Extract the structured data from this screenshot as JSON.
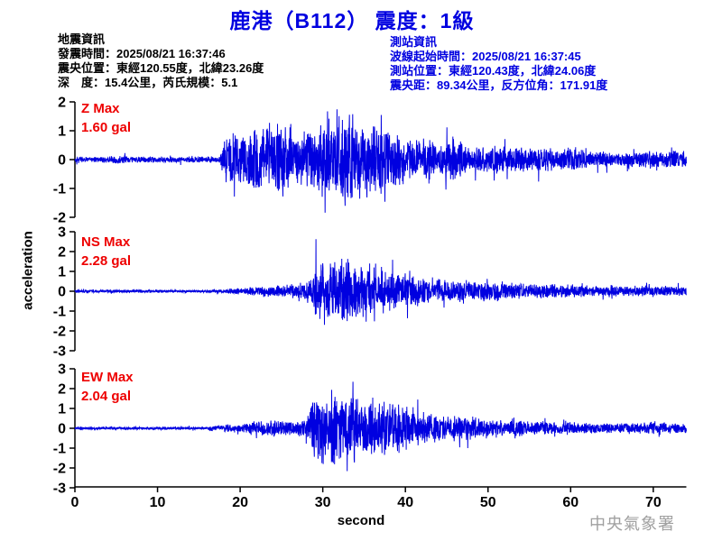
{
  "header": {
    "title": "鹿港（B112） 震度：1級"
  },
  "quake_info": {
    "heading": "地震資訊",
    "lines": [
      "發震時間：2025/08/21 16:37:46",
      "震央位置：東經120.55度，北緯23.26度",
      "深　度：15.4公里，芮氏規模：5.1"
    ]
  },
  "station_info": {
    "heading": "測站資訊",
    "lines": [
      "波線起始時間：2025/08/21 16:37:45",
      "測站位置：東經120.43度，北緯24.06度",
      "震央距：89.34公里，反方位角：171.91度"
    ]
  },
  "footer": {
    "agency": "中央氣象署"
  },
  "colors": {
    "title_blue": "#0000e0",
    "station_info_blue": "#0000e0",
    "label_red": "#ee0000",
    "waveform_blue": "#0000e0",
    "axis_black": "#000000",
    "footer_gray": "#a0a0a0"
  },
  "chart_data": {
    "type": "line",
    "subtype": "seismogram-3-channel-acceleration",
    "title": "鹿港（B112） 震度：1級",
    "xlabel": "second",
    "ylabel": "acceleration",
    "x_ticks": [
      0,
      10,
      20,
      30,
      40,
      50,
      60,
      70
    ],
    "x_range": [
      0,
      74
    ],
    "grid": false,
    "channels": [
      {
        "name": "Z",
        "label": "Z Max",
        "max_label": "1.60 gal",
        "max_gal": 1.6,
        "ylim": [
          -2,
          2
        ],
        "y_ticks": [
          2,
          1,
          0,
          -1,
          -2
        ],
        "envelope": [
          [
            0,
            0.06
          ],
          [
            4.5,
            0.08
          ],
          [
            5.5,
            0.11
          ],
          [
            6.5,
            0.07
          ],
          [
            12,
            0.07
          ],
          [
            17.6,
            0.07
          ],
          [
            18,
            0.5
          ],
          [
            19,
            0.6
          ],
          [
            20,
            0.55
          ],
          [
            21,
            0.65
          ],
          [
            22,
            0.8
          ],
          [
            23,
            0.7
          ],
          [
            24,
            0.75
          ],
          [
            25,
            0.85
          ],
          [
            26,
            0.75
          ],
          [
            27,
            0.6
          ],
          [
            28,
            0.65
          ],
          [
            29,
            0.7
          ],
          [
            30,
            0.95
          ],
          [
            31,
            0.9
          ],
          [
            32,
            1.05
          ],
          [
            33,
            1.1
          ],
          [
            34,
            1.0
          ],
          [
            35,
            0.95
          ],
          [
            36,
            0.8
          ],
          [
            37,
            0.85
          ],
          [
            38,
            0.7
          ],
          [
            39,
            0.65
          ],
          [
            40,
            0.5
          ],
          [
            41,
            0.55
          ],
          [
            42,
            0.4
          ],
          [
            43,
            0.5
          ],
          [
            44,
            0.35
          ],
          [
            45,
            0.4
          ],
          [
            46,
            0.55
          ],
          [
            47,
            0.35
          ],
          [
            48,
            0.28
          ],
          [
            49,
            0.33
          ],
          [
            50,
            0.3
          ],
          [
            51,
            0.34
          ],
          [
            52,
            0.3
          ],
          [
            53,
            0.24
          ],
          [
            54,
            0.3
          ],
          [
            55,
            0.26
          ],
          [
            56,
            0.28
          ],
          [
            57,
            0.32
          ],
          [
            58,
            0.24
          ],
          [
            59,
            0.27
          ],
          [
            60,
            0.26
          ],
          [
            61,
            0.24
          ],
          [
            62,
            0.21
          ],
          [
            63,
            0.16
          ],
          [
            64,
            0.2
          ],
          [
            65,
            0.15
          ],
          [
            66,
            0.13
          ],
          [
            67,
            0.22
          ],
          [
            68,
            0.16
          ],
          [
            69,
            0.19
          ],
          [
            70,
            0.24
          ],
          [
            71,
            0.19
          ],
          [
            72,
            0.22
          ],
          [
            73,
            0.19
          ],
          [
            74,
            0.18
          ]
        ]
      },
      {
        "name": "NS",
        "label": "NS Max",
        "max_label": "2.28 gal",
        "max_gal": 2.28,
        "ylim": [
          -3,
          3
        ],
        "y_ticks": [
          3,
          2,
          1,
          0,
          -1,
          -2,
          -3
        ],
        "envelope": [
          [
            0,
            0.06
          ],
          [
            8,
            0.07
          ],
          [
            16,
            0.06
          ],
          [
            17,
            0.1
          ],
          [
            18,
            0.09
          ],
          [
            19,
            0.13
          ],
          [
            20,
            0.18
          ],
          [
            21,
            0.16
          ],
          [
            22,
            0.22
          ],
          [
            23,
            0.26
          ],
          [
            24,
            0.3
          ],
          [
            25,
            0.28
          ],
          [
            26,
            0.33
          ],
          [
            27,
            0.36
          ],
          [
            28,
            0.5
          ],
          [
            28.8,
            0.7
          ],
          [
            29.3,
            1.5
          ],
          [
            30,
            1.6
          ],
          [
            30.5,
            1.3
          ],
          [
            31,
            1.55
          ],
          [
            31.5,
            1.35
          ],
          [
            32,
            1.6
          ],
          [
            32.5,
            1.45
          ],
          [
            33,
            1.55
          ],
          [
            33.5,
            1.75
          ],
          [
            34,
            1.65
          ],
          [
            34.5,
            1.35
          ],
          [
            35,
            1.25
          ],
          [
            35.5,
            1.45
          ],
          [
            36,
            1.15
          ],
          [
            36.5,
            1.0
          ],
          [
            37,
            0.95
          ],
          [
            38,
            0.85
          ],
          [
            39,
            0.9
          ],
          [
            40,
            0.65
          ],
          [
            41,
            0.75
          ],
          [
            42,
            0.6
          ],
          [
            43,
            0.65
          ],
          [
            44,
            0.55
          ],
          [
            45,
            0.6
          ],
          [
            46,
            0.5
          ],
          [
            47,
            0.55
          ],
          [
            48,
            0.45
          ],
          [
            49,
            0.5
          ],
          [
            50,
            0.44
          ],
          [
            51,
            0.5
          ],
          [
            52,
            0.42
          ],
          [
            53,
            0.38
          ],
          [
            54,
            0.4
          ],
          [
            55,
            0.36
          ],
          [
            56,
            0.33
          ],
          [
            57,
            0.36
          ],
          [
            58,
            0.3
          ],
          [
            59,
            0.33
          ],
          [
            60,
            0.32
          ],
          [
            61,
            0.28
          ],
          [
            62,
            0.27
          ],
          [
            63,
            0.25
          ],
          [
            64,
            0.24
          ],
          [
            65,
            0.26
          ],
          [
            66,
            0.22
          ],
          [
            67,
            0.24
          ],
          [
            68,
            0.25
          ],
          [
            69,
            0.22
          ],
          [
            70,
            0.22
          ],
          [
            71,
            0.24
          ],
          [
            72,
            0.23
          ],
          [
            73,
            0.21
          ],
          [
            74,
            0.2
          ]
        ]
      },
      {
        "name": "EW",
        "label": "EW Max",
        "max_label": "2.04 gal",
        "max_gal": 2.04,
        "ylim": [
          -3,
          3
        ],
        "y_ticks": [
          3,
          2,
          1,
          0,
          -1,
          -2,
          -3
        ],
        "envelope": [
          [
            0,
            0.05
          ],
          [
            8,
            0.06
          ],
          [
            16,
            0.05
          ],
          [
            16.5,
            0.13
          ],
          [
            17.5,
            0.1
          ],
          [
            18.5,
            0.16
          ],
          [
            19.5,
            0.12
          ],
          [
            20.5,
            0.2
          ],
          [
            21,
            0.28
          ],
          [
            22,
            0.32
          ],
          [
            23,
            0.28
          ],
          [
            24,
            0.33
          ],
          [
            25,
            0.3
          ],
          [
            26,
            0.33
          ],
          [
            27,
            0.3
          ],
          [
            28,
            0.45
          ],
          [
            28.5,
            0.95
          ],
          [
            29,
            1.3
          ],
          [
            29.5,
            1.6
          ],
          [
            30,
            1.45
          ],
          [
            30.5,
            1.1
          ],
          [
            31,
            1.45
          ],
          [
            31.5,
            1.65
          ],
          [
            32,
            1.35
          ],
          [
            32.5,
            0.95
          ],
          [
            33,
            1.25
          ],
          [
            33.5,
            1.55
          ],
          [
            34,
            1.35
          ],
          [
            34.5,
            1.05
          ],
          [
            35,
            1.15
          ],
          [
            36,
            1.25
          ],
          [
            36.5,
            1.0
          ],
          [
            37,
            1.15
          ],
          [
            38,
            1.05
          ],
          [
            39,
            1.1
          ],
          [
            40,
            0.95
          ],
          [
            41,
            0.75
          ],
          [
            42,
            0.62
          ],
          [
            43,
            0.58
          ],
          [
            44,
            0.52
          ],
          [
            45,
            0.48
          ],
          [
            46,
            0.52
          ],
          [
            47,
            0.42
          ],
          [
            48,
            0.45
          ],
          [
            49,
            0.4
          ],
          [
            50,
            0.42
          ],
          [
            51,
            0.36
          ],
          [
            52,
            0.33
          ],
          [
            53,
            0.3
          ],
          [
            54,
            0.32
          ],
          [
            55,
            0.28
          ],
          [
            56,
            0.26
          ],
          [
            57,
            0.28
          ],
          [
            58,
            0.23
          ],
          [
            59,
            0.26
          ],
          [
            60,
            0.26
          ],
          [
            61,
            0.22
          ],
          [
            62,
            0.2
          ],
          [
            63,
            0.22
          ],
          [
            64,
            0.23
          ],
          [
            65,
            0.2
          ],
          [
            66,
            0.21
          ],
          [
            67,
            0.22
          ],
          [
            68,
            0.23
          ],
          [
            69,
            0.21
          ],
          [
            70,
            0.26
          ],
          [
            71,
            0.21
          ],
          [
            72,
            0.23
          ],
          [
            73,
            0.2
          ],
          [
            74,
            0.2
          ]
        ]
      }
    ]
  }
}
